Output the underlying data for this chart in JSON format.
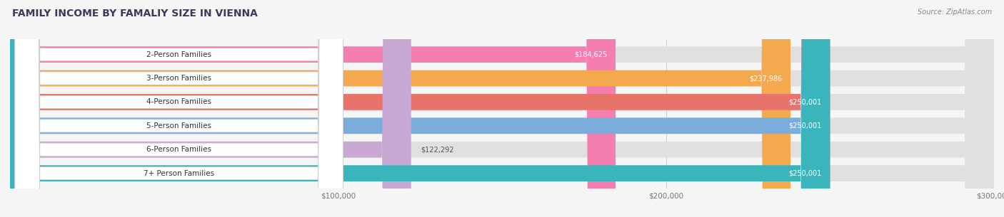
{
  "title": "FAMILY INCOME BY FAMALIY SIZE IN VIENNA",
  "source": "Source: ZipAtlas.com",
  "categories": [
    "2-Person Families",
    "3-Person Families",
    "4-Person Families",
    "5-Person Families",
    "6-Person Families",
    "7+ Person Families"
  ],
  "values": [
    184625,
    237986,
    250001,
    250001,
    122292,
    250001
  ],
  "bar_colors": [
    "#f47eb0",
    "#f5a94e",
    "#e8736a",
    "#7aacdc",
    "#c9a8d4",
    "#3ab5bc"
  ],
  "xmax": 300000,
  "xticks": [
    0,
    100000,
    200000,
    300000
  ],
  "xtick_labels": [
    "",
    "$100,000",
    "$200,000",
    "$300,000"
  ],
  "bg_color": "#f5f5f5",
  "bar_bg_color": "#e0e0e0",
  "title_color": "#3a3a5c",
  "source_color": "#888888",
  "title_fontsize": 10,
  "source_fontsize": 7,
  "label_fontsize": 7,
  "category_fontsize": 7.5,
  "tick_fontsize": 7.5
}
